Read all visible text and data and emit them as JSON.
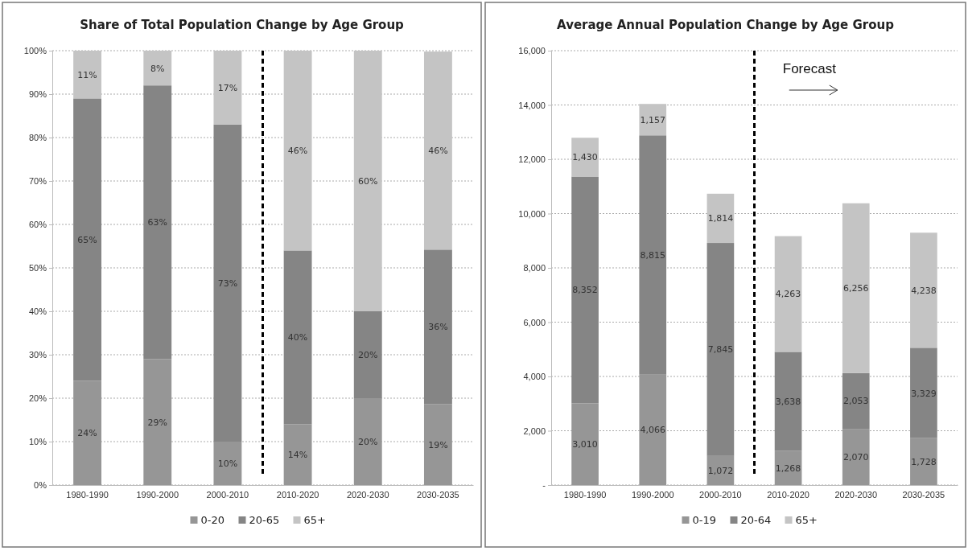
{
  "chart_data": [
    {
      "type": "bar",
      "title": "Share of Total Population Change by Age Group",
      "stacked": true,
      "grid": "y",
      "legend": "bottom",
      "categories": [
        "1980-1990",
        "1990-2000",
        "2000-2010",
        "2010-2020",
        "2020-2030",
        "2030-2035"
      ],
      "ylim": [
        0,
        100
      ],
      "yticks": [
        {
          "value": 0,
          "label": "0%"
        },
        {
          "value": 10,
          "label": "10%"
        },
        {
          "value": 20,
          "label": "20%"
        },
        {
          "value": 30,
          "label": "30%"
        },
        {
          "value": 40,
          "label": "40%"
        },
        {
          "value": 50,
          "label": "50%"
        },
        {
          "value": 60,
          "label": "60%"
        },
        {
          "value": 70,
          "label": "70%"
        },
        {
          "value": 80,
          "label": "80%"
        },
        {
          "value": 90,
          "label": "90%"
        },
        {
          "value": 100,
          "label": "100%"
        }
      ],
      "series": [
        {
          "name": "0-20",
          "color": "#969696",
          "values": [
            24,
            29,
            10,
            14,
            20,
            18.6
          ],
          "value_labels": [
            "24%",
            "29%",
            "10%",
            "14%",
            "20%",
            "19%"
          ]
        },
        {
          "name": "20-65",
          "color": "#858585",
          "values": [
            65,
            63,
            73,
            40,
            20,
            35.6
          ],
          "value_labels": [
            "65%",
            "63%",
            "73%",
            "40%",
            "20%",
            "36%"
          ]
        },
        {
          "name": "65+",
          "color": "#c4c4c4",
          "values": [
            11,
            8,
            17,
            46,
            60,
            45.6
          ],
          "value_labels": [
            "11%",
            "8%",
            "17%",
            "46%",
            "60%",
            "46%"
          ]
        }
      ]
    },
    {
      "type": "bar",
      "title": "Average Annual Population Change by Age Group",
      "stacked": true,
      "grid": "y",
      "legend": "bottom",
      "categories": [
        "1980-1990",
        "1990-2000",
        "2000-2010",
        "2010-2020",
        "2020-2030",
        "2030-2035"
      ],
      "ylim": [
        0,
        16000
      ],
      "yticks": [
        {
          "value": 0,
          "label": "-"
        },
        {
          "value": 2000,
          "label": "2,000"
        },
        {
          "value": 4000,
          "label": "4,000"
        },
        {
          "value": 6000,
          "label": "6,000"
        },
        {
          "value": 8000,
          "label": "8,000"
        },
        {
          "value": 10000,
          "label": "10,000"
        },
        {
          "value": 12000,
          "label": "12,000"
        },
        {
          "value": 14000,
          "label": "14,000"
        },
        {
          "value": 16000,
          "label": "16,000"
        }
      ],
      "series": [
        {
          "name": "0-19",
          "color": "#969696",
          "values": [
            3010,
            4066,
            1072,
            1268,
            2070,
            1728
          ],
          "value_labels": [
            "3,010",
            "4,066",
            "1,072",
            "1,268",
            "2,070",
            "1,728"
          ]
        },
        {
          "name": "20-64",
          "color": "#858585",
          "values": [
            8352,
            8815,
            7845,
            3638,
            2053,
            3329
          ],
          "value_labels": [
            "8,352",
            "8,815",
            "7,845",
            "3,638",
            "2,053",
            "3,329"
          ]
        },
        {
          "name": "65+",
          "color": "#c4c4c4",
          "values": [
            1430,
            1157,
            1814,
            4263,
            6256,
            4238
          ],
          "value_labels": [
            "1,430",
            "1,157",
            "1,814",
            "4,263",
            "6,256",
            "4,238"
          ]
        }
      ],
      "annotations": [
        "Forecast"
      ]
    }
  ]
}
